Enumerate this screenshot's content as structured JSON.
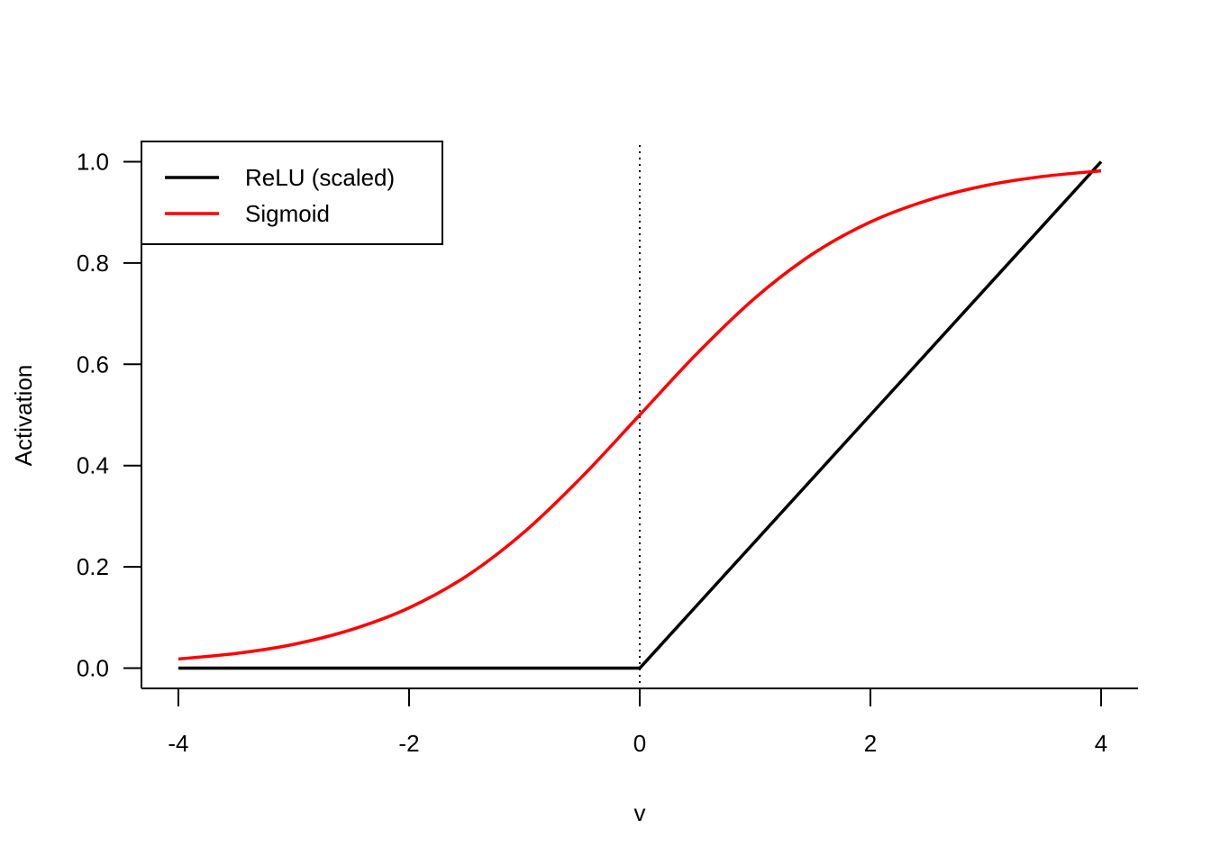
{
  "chart_data": {
    "type": "line",
    "xlabel": "v",
    "ylabel": "Activation",
    "xlim": [
      -4.32,
      4.32
    ],
    "ylim": [
      -0.04,
      1.04
    ],
    "xticks": [
      -4,
      -2,
      0,
      2,
      4
    ],
    "xtick_labels": [
      "-4",
      "-2",
      "0",
      "2",
      "4"
    ],
    "yticks": [
      0,
      0.2,
      0.4,
      0.6,
      0.8,
      1
    ],
    "ytick_labels": [
      "0.0",
      "0.2",
      "0.4",
      "0.6",
      "0.8",
      "1.0"
    ],
    "legend_position": "top-left",
    "reference_lines": [
      {
        "axis": "x",
        "value": 0,
        "style": "dotted",
        "color": "#000000"
      }
    ],
    "series": [
      {
        "name": "ReLU (scaled)",
        "color": "#000000",
        "x": [
          -4,
          -3,
          -2,
          -1,
          0,
          1,
          2,
          3,
          4
        ],
        "y": [
          0,
          0,
          0,
          0,
          0,
          0.25,
          0.5,
          0.75,
          1
        ]
      },
      {
        "name": "Sigmoid",
        "color": "#ff0000",
        "x": [
          -4,
          -3.5,
          -3,
          -2.5,
          -2,
          -1.5,
          -1,
          -0.5,
          0,
          0.5,
          1,
          1.5,
          2,
          2.5,
          3,
          3.5,
          4
        ],
        "y": [
          0.018,
          0.029,
          0.047,
          0.076,
          0.119,
          0.182,
          0.269,
          0.378,
          0.5,
          0.622,
          0.731,
          0.818,
          0.881,
          0.924,
          0.953,
          0.971,
          0.982
        ]
      }
    ]
  }
}
